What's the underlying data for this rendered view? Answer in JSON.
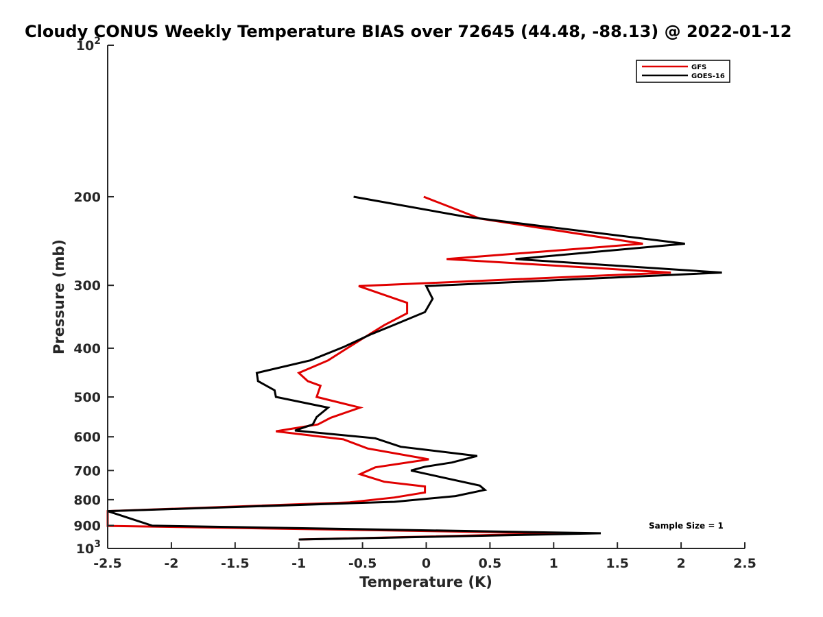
{
  "chart_data": {
    "type": "line",
    "title": "Cloudy CONUS Weekly Temperature BIAS over 72645 (44.48, -88.13) @ 2022-01-12",
    "xlabel": "Temperature (K)",
    "ylabel": "Pressure (mb)",
    "xlim": [
      -2.5,
      2.5
    ],
    "ylim": [
      100,
      1000
    ],
    "y_scale": "log",
    "y_reversed": true,
    "grid": false,
    "legend_position": "top-right",
    "x_ticks": [
      "-2.5",
      "-2",
      "-1.5",
      "-1",
      "-0.5",
      "0",
      "0.5",
      "1",
      "1.5",
      "2",
      "2.5"
    ],
    "y_ticks": [
      {
        "value": 100,
        "label": "10",
        "sup": "2"
      },
      {
        "value": 200,
        "label": "200",
        "sup": ""
      },
      {
        "value": 300,
        "label": "300",
        "sup": ""
      },
      {
        "value": 400,
        "label": "400",
        "sup": ""
      },
      {
        "value": 500,
        "label": "500",
        "sup": ""
      },
      {
        "value": 600,
        "label": "600",
        "sup": ""
      },
      {
        "value": 700,
        "label": "700",
        "sup": ""
      },
      {
        "value": 800,
        "label": "800",
        "sup": ""
      },
      {
        "value": 900,
        "label": "900",
        "sup": ""
      },
      {
        "value": 1000,
        "label": "10",
        "sup": "3"
      }
    ],
    "annotation": "Sample Size = 1",
    "series": [
      {
        "name": "GFS",
        "color": "#e00000",
        "points": [
          {
            "x": -0.02,
            "p": 200
          },
          {
            "x": 0.42,
            "p": 221
          },
          {
            "x": 1.7,
            "p": 248
          },
          {
            "x": 0.16,
            "p": 266
          },
          {
            "x": 1.92,
            "p": 283
          },
          {
            "x": -0.53,
            "p": 301
          },
          {
            "x": -0.15,
            "p": 325
          },
          {
            "x": -0.15,
            "p": 341
          },
          {
            "x": -0.33,
            "p": 360
          },
          {
            "x": -0.48,
            "p": 380
          },
          {
            "x": -0.62,
            "p": 400
          },
          {
            "x": -0.77,
            "p": 423
          },
          {
            "x": -1.0,
            "p": 448
          },
          {
            "x": -0.93,
            "p": 465
          },
          {
            "x": -0.83,
            "p": 475
          },
          {
            "x": -0.86,
            "p": 500
          },
          {
            "x": -0.52,
            "p": 525
          },
          {
            "x": -0.75,
            "p": 550
          },
          {
            "x": -0.85,
            "p": 567
          },
          {
            "x": -1.18,
            "p": 585
          },
          {
            "x": -0.65,
            "p": 607
          },
          {
            "x": -0.46,
            "p": 633
          },
          {
            "x": 0.02,
            "p": 665
          },
          {
            "x": -0.4,
            "p": 690
          },
          {
            "x": -0.52,
            "p": 712
          },
          {
            "x": -0.33,
            "p": 737
          },
          {
            "x": -0.01,
            "p": 753
          },
          {
            "x": -0.01,
            "p": 774
          },
          {
            "x": -0.25,
            "p": 792
          },
          {
            "x": -0.6,
            "p": 810
          },
          {
            "x": -2.5,
            "p": 843
          },
          {
            "x": -2.5,
            "p": 902
          },
          {
            "x": 1.1,
            "p": 933
          },
          {
            "x": -1.0,
            "p": 960
          }
        ]
      },
      {
        "name": "GOES-16",
        "color": "#000000",
        "points": [
          {
            "x": -0.57,
            "p": 200
          },
          {
            "x": 0.3,
            "p": 219
          },
          {
            "x": 2.03,
            "p": 248
          },
          {
            "x": 0.7,
            "p": 266
          },
          {
            "x": 2.32,
            "p": 283
          },
          {
            "x": 0.0,
            "p": 301
          },
          {
            "x": 0.05,
            "p": 319
          },
          {
            "x": -0.01,
            "p": 339
          },
          {
            "x": -0.27,
            "p": 361
          },
          {
            "x": -0.43,
            "p": 375
          },
          {
            "x": -0.65,
            "p": 398
          },
          {
            "x": -0.91,
            "p": 423
          },
          {
            "x": -1.33,
            "p": 448
          },
          {
            "x": -1.32,
            "p": 465
          },
          {
            "x": -1.19,
            "p": 485
          },
          {
            "x": -1.18,
            "p": 500
          },
          {
            "x": -0.77,
            "p": 525
          },
          {
            "x": -0.86,
            "p": 548
          },
          {
            "x": -0.89,
            "p": 567
          },
          {
            "x": -1.03,
            "p": 583
          },
          {
            "x": -0.4,
            "p": 604
          },
          {
            "x": -0.2,
            "p": 628
          },
          {
            "x": 0.4,
            "p": 655
          },
          {
            "x": 0.2,
            "p": 675
          },
          {
            "x": -0.01,
            "p": 688
          },
          {
            "x": -0.12,
            "p": 700
          },
          {
            "x": 0.1,
            "p": 720
          },
          {
            "x": 0.42,
            "p": 750
          },
          {
            "x": 0.46,
            "p": 765
          },
          {
            "x": 0.23,
            "p": 787
          },
          {
            "x": -0.25,
            "p": 808
          },
          {
            "x": -2.5,
            "p": 843
          },
          {
            "x": -2.15,
            "p": 901
          },
          {
            "x": 1.37,
            "p": 933
          },
          {
            "x": -1.0,
            "p": 960
          }
        ]
      }
    ]
  }
}
